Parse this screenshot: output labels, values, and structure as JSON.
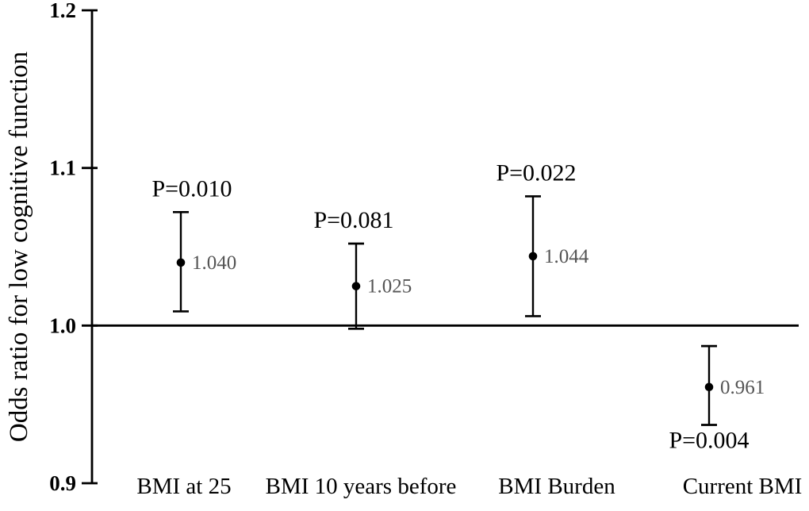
{
  "chart_data": {
    "type": "scatter",
    "subtype": "point-with-error-bars",
    "title": "",
    "xlabel": "",
    "ylabel": "Odds ratio for low cognitive function",
    "ylim": [
      0.9,
      1.2
    ],
    "yticks": [
      1.2,
      1.1,
      1.0,
      0.9
    ],
    "ytick_labels": [
      "1.2",
      "1.1",
      "1.0",
      "0.9"
    ],
    "reference_line": 1.0,
    "grid": false,
    "legend": "none",
    "categories": [
      "BMI at 25",
      "BMI 10 years before",
      "BMI Burden",
      "Current BMI"
    ],
    "series": [
      {
        "name": "Odds ratio",
        "points": [
          {
            "category": "BMI at 25",
            "odds_ratio": 1.04,
            "value_label": "1.040",
            "ci_low": 1.009,
            "ci_high": 1.072,
            "p_label": "P=0.010",
            "p_position": "above"
          },
          {
            "category": "BMI 10 years before",
            "odds_ratio": 1.025,
            "value_label": "1.025",
            "ci_low": 0.998,
            "ci_high": 1.052,
            "p_label": "P=0.081",
            "p_position": "above"
          },
          {
            "category": "BMI Burden",
            "odds_ratio": 1.044,
            "value_label": "1.044",
            "ci_low": 1.006,
            "ci_high": 1.082,
            "p_label": "P=0.022",
            "p_position": "above"
          },
          {
            "category": "Current BMI",
            "odds_ratio": 0.961,
            "value_label": "0.961",
            "ci_low": 0.937,
            "ci_high": 0.987,
            "p_label": "P=0.004",
            "p_position": "below"
          }
        ]
      }
    ],
    "colors": {
      "axis": "#000000",
      "marker": "#000000",
      "error_bar": "#000000",
      "p_label_text": "#000000",
      "value_label_text": "#545454",
      "background": "#ffffff"
    }
  }
}
